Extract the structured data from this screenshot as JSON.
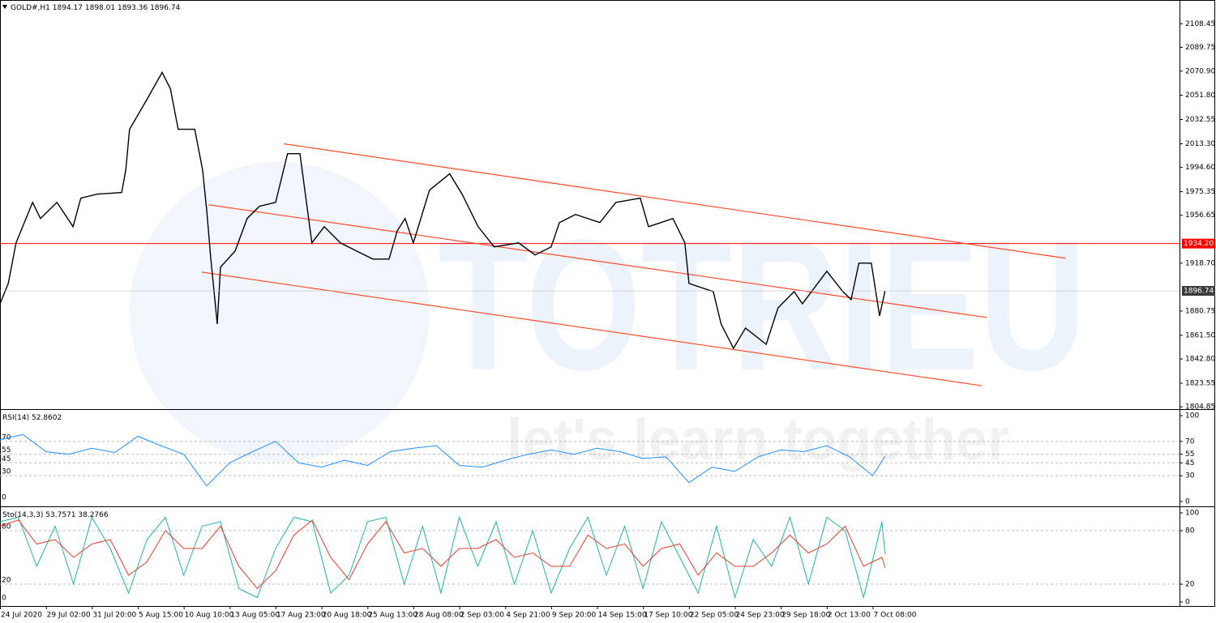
{
  "watermark": {
    "brand": "TOTRIEU",
    "tagline": "let's learn together"
  },
  "chart_data": [
    {
      "type": "line",
      "title": "GOLD#,H1",
      "ohlc": [
        1894.17,
        1898.01,
        1893.36,
        1896.74
      ],
      "x": [
        0,
        0.18,
        0.35,
        0.71,
        0.88,
        1.24,
        1.59,
        1.76,
        2.12,
        2.65,
        2.74,
        2.82,
        3.18,
        3.53,
        3.71,
        3.88,
        4.24,
        4.41,
        4.5,
        4.59,
        4.73,
        4.8,
        5.12,
        5.38,
        5.65,
        6.0,
        6.26,
        6.53,
        6.79,
        7.06,
        7.41,
        7.76,
        8.12,
        8.47,
        8.65,
        8.82,
        9.0,
        9.35,
        9.79,
        10.06,
        10.41,
        10.76,
        11.29,
        11.65,
        12.0,
        12.18,
        12.53,
        13.06,
        13.41,
        13.94,
        14.12,
        14.65,
        14.91,
        15.0,
        15.53,
        15.7,
        15.97,
        16.23,
        16.68,
        16.94,
        17.29,
        17.47,
        18.0,
        18.35,
        18.53,
        18.7,
        18.97,
        19.15,
        19.27
      ],
      "series": [
        {
          "color": "#000000",
          "values": [
            1886.5,
            1902.6,
            1934.8,
            1966.9,
            1954.1,
            1966.9,
            1947.6,
            1970.2,
            1973.4,
            1974.7,
            1992.7,
            2024.8,
            2047.3,
            2069.9,
            2057.0,
            2024.8,
            2024.8,
            1992.7,
            1960.5,
            1921.9,
            1870.5,
            1915.5,
            1928.4,
            1954.1,
            1963.8,
            1966.9,
            2005.5,
            2005.5,
            1934.8,
            1947.6,
            1934.8,
            1928.4,
            1921.9,
            1921.9,
            1944.4,
            1954.1,
            1934.8,
            1976.6,
            1989.5,
            1973.4,
            1947.6,
            1931.6,
            1934.8,
            1925.2,
            1931.6,
            1950.9,
            1957.3,
            1950.9,
            1966.9,
            1970.2,
            1947.6,
            1954.1,
            1934.8,
            1902.6,
            1896.2,
            1870.5,
            1851.2,
            1867.3,
            1854.4,
            1883.3,
            1896.2,
            1886.5,
            1912.3,
            1896.2,
            1889.8,
            1918.7,
            1918.7,
            1876.9,
            1896.74
          ]
        }
      ],
      "xlim": [
        0,
        25.68
      ],
      "xticks": [
        {
          "value": 0,
          "label": "24 Jul 2020"
        },
        {
          "value": 1,
          "label": "29 Jul 02:00"
        },
        {
          "value": 2,
          "label": "31 Jul 20:00"
        },
        {
          "value": 3,
          "label": "5 Aug 15:00"
        },
        {
          "value": 4,
          "label": "10 Aug 10:00"
        },
        {
          "value": 5,
          "label": "13 Aug 05:00"
        },
        {
          "value": 6,
          "label": "17 Aug 23:00"
        },
        {
          "value": 7,
          "label": "20 Aug 18:00"
        },
        {
          "value": 8,
          "label": "25 Aug 13:00"
        },
        {
          "value": 9,
          "label": "28 Aug 08:00"
        },
        {
          "value": 10,
          "label": "2 Sep 03:00"
        },
        {
          "value": 11,
          "label": "4 Sep 21:00"
        },
        {
          "value": 12,
          "label": "9 Sep 20:00"
        },
        {
          "value": 13,
          "label": "14 Sep 15:00"
        },
        {
          "value": 14,
          "label": "17 Sep 10:00"
        },
        {
          "value": 15,
          "label": "22 Sep 05:00"
        },
        {
          "value": 16,
          "label": "24 Sep 23:00"
        },
        {
          "value": 17,
          "label": "29 Sep 18:00"
        },
        {
          "value": 18,
          "label": "2 Oct 13:00"
        },
        {
          "value": 19,
          "label": "7 Oct 08:00"
        }
      ],
      "ylim": [
        1803,
        2126
      ],
      "yticks": [
        2108.45,
        2089.75,
        {
          "value": 2070.9,
          "label": "2070.90"
        },
        {
          "value": 2051.8,
          "label": "2051.80"
        },
        2032.55,
        {
          "value": 2013.3,
          "label": "2013.30"
        },
        {
          "value": 1994.6,
          "label": "1994.60"
        },
        1975.35,
        1956.65,
        {
          "value": 1918.7,
          "label": "1918.70"
        },
        1880.75,
        {
          "value": 1861.5,
          "label": "1861.50"
        },
        {
          "value": 1842.8,
          "label": "1842.80"
        },
        1823.55,
        1804.85
      ],
      "grid": false,
      "hline": {
        "value": 1934.2,
        "label": "1934.20",
        "color": "#ff0000"
      },
      "trendline_color": "#ff4a2a",
      "trendlines": [
        {
          "x": [
            6.18,
            23.2
          ],
          "y": [
            2013.3,
            1922.6
          ]
        },
        {
          "x": [
            4.54,
            21.49
          ],
          "y": [
            1965.0,
            1875.6
          ]
        },
        {
          "x": [
            4.39,
            21.37
          ],
          "y": [
            1911.6,
            1821.6
          ]
        }
      ]
    },
    {
      "type": "line",
      "title": "RSI(14)",
      "x": [
        0,
        0.5,
        1,
        1.5,
        2,
        2.5,
        3,
        3.5,
        4,
        4.5,
        5,
        5.5,
        6,
        6.5,
        7,
        7.5,
        8,
        8.5,
        9,
        9.5,
        10,
        10.5,
        11,
        11.5,
        12,
        12.5,
        13,
        13.5,
        14,
        14.5,
        15,
        15.5,
        16,
        16.5,
        17,
        17.5,
        18,
        18.5,
        19,
        19.27
      ],
      "series": [
        {
          "color": "#1e90ff",
          "values": [
            72,
            78,
            58,
            55,
            62,
            57,
            76,
            65,
            55,
            18,
            45,
            58,
            70,
            45,
            40,
            48,
            42,
            58,
            62,
            65,
            42,
            40,
            48,
            55,
            60,
            55,
            62,
            58,
            50,
            52,
            22,
            40,
            35,
            52,
            60,
            58,
            65,
            52,
            30,
            52.8602
          ]
        }
      ],
      "xlim": [
        0,
        25.68
      ],
      "ylim": [
        -5.7,
        105.7
      ],
      "yticks": [
        100,
        70,
        55,
        45,
        30,
        0
      ],
      "levels": [
        70,
        55,
        45,
        30
      ]
    },
    {
      "type": "line",
      "title": "Sto(14,3,3)",
      "x": [
        0,
        0.4,
        0.8,
        1.2,
        1.6,
        2,
        2.4,
        2.8,
        3.2,
        3.6,
        4,
        4.4,
        4.8,
        5.2,
        5.6,
        6,
        6.4,
        6.8,
        7.2,
        7.6,
        8,
        8.4,
        8.8,
        9.2,
        9.6,
        10,
        10.4,
        10.8,
        11.2,
        11.6,
        12,
        12.4,
        12.8,
        13.2,
        13.6,
        14,
        14.4,
        14.8,
        15.2,
        15.6,
        16,
        16.4,
        16.8,
        17.2,
        17.6,
        18,
        18.4,
        18.8,
        19.2,
        19.27
      ],
      "series": [
        {
          "color": "#20b2aa",
          "values": [
            90,
            95,
            40,
            85,
            20,
            95,
            60,
            10,
            70,
            95,
            30,
            85,
            90,
            15,
            5,
            60,
            95,
            90,
            10,
            30,
            90,
            95,
            20,
            85,
            10,
            95,
            40,
            90,
            20,
            80,
            10,
            60,
            95,
            30,
            85,
            15,
            90,
            50,
            10,
            85,
            5,
            70,
            40,
            95,
            20,
            95,
            80,
            5,
            90,
            53.7571
          ]
        },
        {
          "color": "#e0402a",
          "values": [
            85,
            92,
            65,
            70,
            50,
            65,
            70,
            30,
            45,
            80,
            60,
            60,
            85,
            40,
            15,
            35,
            75,
            92,
            50,
            25,
            65,
            90,
            55,
            60,
            40,
            60,
            60,
            70,
            50,
            55,
            40,
            40,
            75,
            60,
            65,
            40,
            60,
            65,
            30,
            55,
            40,
            40,
            55,
            75,
            55,
            65,
            85,
            40,
            50,
            38.2766
          ]
        }
      ],
      "xlim": [
        0,
        25.68
      ],
      "ylim": [
        -4.5,
        105.5
      ],
      "yticks": [
        100,
        80,
        20,
        0
      ],
      "levels": [
        80,
        20
      ]
    }
  ]
}
